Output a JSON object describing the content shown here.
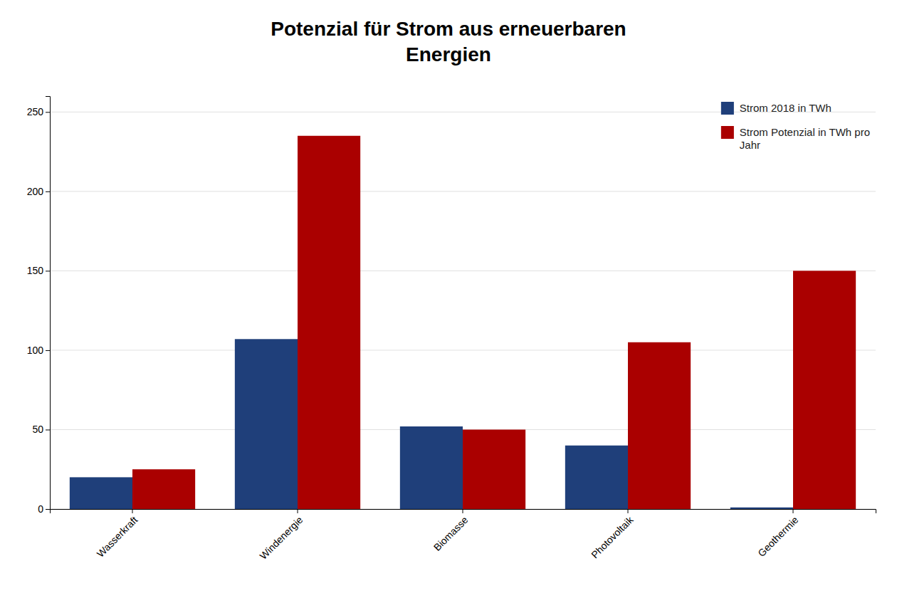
{
  "chart_data": {
    "type": "bar",
    "title": "Potenzial für Strom aus erneuerbaren\nEnergien",
    "categories": [
      "Wasserkraft",
      "Windenergie",
      "Biomasse",
      "Photovoltaik",
      "Geothermie"
    ],
    "series": [
      {
        "name": "Strom 2018 in TWh",
        "color": "#1F3F7A",
        "values": [
          20,
          107,
          52,
          40,
          1
        ]
      },
      {
        "name": "Strom Potenzial in TWh pro\nJahr",
        "color": "#AA0000",
        "values": [
          25,
          235,
          50,
          105,
          150
        ]
      }
    ],
    "ylim": [
      0,
      260
    ],
    "yticks": [
      0,
      50,
      100,
      150,
      200,
      250
    ],
    "grid": true,
    "legend": "upper right"
  }
}
